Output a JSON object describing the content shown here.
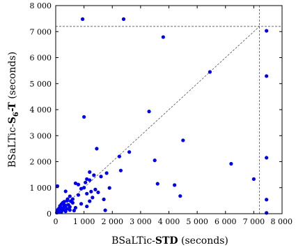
{
  "chart_data": {
    "type": "scatter",
    "xlabel_prefix": "BSaLTic-",
    "xlabel_bold": "STD",
    "xlabel_suffix": " (seconds)",
    "ylabel_prefix": "BSaLTic-",
    "ylabel_bold": "S",
    "ylabel_sub": "6",
    "ylabel_bold2": "-T",
    "ylabel_suffix": " (seconds)",
    "xlim": [
      0,
      8000
    ],
    "ylim": [
      0,
      8000
    ],
    "x_ticks": [
      0,
      1000,
      2000,
      3000,
      4000,
      5000,
      6000,
      7000,
      8000
    ],
    "y_ticks": [
      0,
      1000,
      2000,
      3000,
      4000,
      5000,
      6000,
      7000,
      8000
    ],
    "x_tick_labels": [
      "0",
      "1 000",
      "2 000",
      "3 000",
      "4 000",
      "5 000",
      "6 000",
      "7 000",
      "8 000"
    ],
    "y_tick_labels": [
      "0",
      "1 000",
      "2 000",
      "3 000",
      "4 000",
      "5 000",
      "6 000",
      "7 000",
      "8 000"
    ],
    "timeout": 7200,
    "diagonal": true,
    "point_color": "#0000ee",
    "line_color": "#555555",
    "points": [
      [
        950,
        7480
      ],
      [
        2400,
        7480
      ],
      [
        3800,
        6790
      ],
      [
        7450,
        7030
      ],
      [
        5450,
        5450
      ],
      [
        7450,
        5290
      ],
      [
        3300,
        3930
      ],
      [
        1000,
        3720
      ],
      [
        4500,
        2820
      ],
      [
        1450,
        2500
      ],
      [
        2600,
        2370
      ],
      [
        2250,
        2200
      ],
      [
        3500,
        2050
      ],
      [
        7450,
        2150
      ],
      [
        6200,
        1920
      ],
      [
        2300,
        1660
      ],
      [
        1200,
        1600
      ],
      [
        1800,
        1560
      ],
      [
        1350,
        1480
      ],
      [
        1600,
        1430
      ],
      [
        1100,
        1330
      ],
      [
        1200,
        1290
      ],
      [
        1050,
        1200
      ],
      [
        700,
        1170
      ],
      [
        800,
        1120
      ],
      [
        3600,
        1150
      ],
      [
        4200,
        1100
      ],
      [
        60,
        1060
      ],
      [
        7000,
        1330
      ],
      [
        1900,
        990
      ],
      [
        1000,
        1000
      ],
      [
        900,
        960
      ],
      [
        1400,
        930
      ],
      [
        1250,
        850
      ],
      [
        1500,
        820
      ],
      [
        350,
        860
      ],
      [
        1100,
        770
      ],
      [
        800,
        720
      ],
      [
        500,
        670
      ],
      [
        4400,
        680
      ],
      [
        1300,
        620
      ],
      [
        600,
        560
      ],
      [
        1200,
        480
      ],
      [
        1700,
        550
      ],
      [
        7450,
        540
      ],
      [
        400,
        500
      ],
      [
        300,
        460
      ],
      [
        250,
        420
      ],
      [
        600,
        420
      ],
      [
        900,
        380
      ],
      [
        200,
        360
      ],
      [
        450,
        340
      ],
      [
        350,
        310
      ],
      [
        150,
        300
      ],
      [
        300,
        270
      ],
      [
        500,
        260
      ],
      [
        1100,
        280
      ],
      [
        700,
        230
      ],
      [
        250,
        220
      ],
      [
        120,
        210
      ],
      [
        400,
        190
      ],
      [
        180,
        180
      ],
      [
        80,
        160
      ],
      [
        300,
        150
      ],
      [
        230,
        130
      ],
      [
        130,
        110
      ],
      [
        60,
        90
      ],
      [
        350,
        90
      ],
      [
        200,
        70
      ],
      [
        100,
        60
      ],
      [
        40,
        40
      ],
      [
        500,
        140
      ],
      [
        650,
        120
      ],
      [
        1750,
        130
      ],
      [
        160,
        260
      ],
      [
        420,
        560
      ],
      [
        280,
        380
      ],
      [
        530,
        480
      ],
      [
        7450,
        30
      ]
    ]
  }
}
